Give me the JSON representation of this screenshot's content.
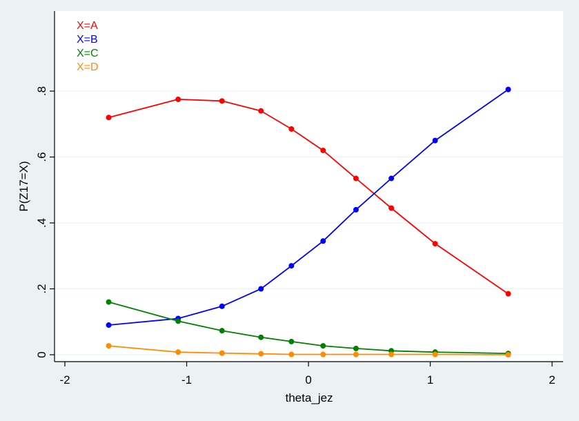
{
  "chart_data": {
    "type": "line",
    "title": "",
    "xlabel": "theta_jez",
    "ylabel": "P(Z17=X)",
    "xlim": [
      -2,
      2
    ],
    "ylim": [
      0,
      0.8
    ],
    "xticks": [
      -2,
      -1,
      0,
      1,
      2
    ],
    "xtick_labels": [
      "-2",
      "-1",
      "0",
      "1",
      "2"
    ],
    "yticks": [
      0,
      0.2,
      0.4,
      0.6,
      0.8
    ],
    "ytick_labels": [
      "0",
      ".2",
      ".4",
      ".6",
      ".8"
    ],
    "grid": true,
    "legend_position": "top-left",
    "x": [
      -1.64,
      -1.07,
      -0.71,
      -0.39,
      -0.14,
      0.12,
      0.39,
      0.68,
      1.04,
      1.64
    ],
    "series": [
      {
        "name": "X=A",
        "color": "#ff0000",
        "values": [
          0.72,
          0.775,
          0.77,
          0.74,
          0.685,
          0.62,
          0.535,
          0.445,
          0.337,
          0.185
        ]
      },
      {
        "name": "X=B",
        "color": "#0000ff",
        "values": [
          0.09,
          0.11,
          0.147,
          0.2,
          0.27,
          0.345,
          0.44,
          0.535,
          0.65,
          0.805
        ]
      },
      {
        "name": "X=C",
        "color": "#008000",
        "values": [
          0.16,
          0.102,
          0.073,
          0.053,
          0.04,
          0.027,
          0.019,
          0.012,
          0.008,
          0.004
        ]
      },
      {
        "name": "X=D",
        "color": "#ff8c00",
        "values": [
          0.027,
          0.008,
          0.005,
          0.003,
          0.001,
          0.001,
          0.001,
          0.001,
          0.001,
          0.0
        ]
      }
    ]
  }
}
